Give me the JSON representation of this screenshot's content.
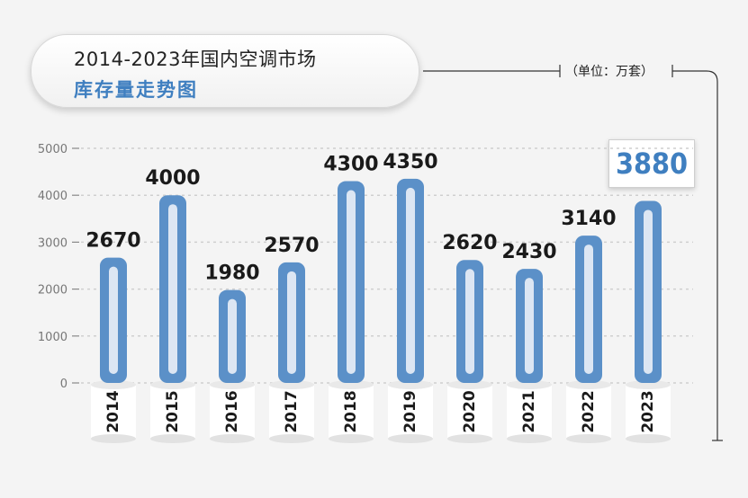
{
  "header": {
    "title_line1": "2014-2023年国内空调市场",
    "title_line2": "库存量走势图",
    "unit": "（单位：万套）"
  },
  "highlight": {
    "value": "3880"
  },
  "colors": {
    "bar_outer": "#5b90c8",
    "bar_inner": "#dce6f3",
    "accent_text": "#3f7fc0",
    "grid": "#cfcfcf"
  },
  "chart_data": {
    "type": "bar",
    "categories": [
      "2014",
      "2015",
      "2016",
      "2017",
      "2018",
      "2019",
      "2020",
      "2021",
      "2022",
      "2023"
    ],
    "values": [
      2670,
      4000,
      1980,
      2570,
      4300,
      4350,
      2620,
      2430,
      3140,
      3880
    ],
    "data_labels": [
      "2670",
      "4000",
      "1980",
      "2570",
      "4300",
      "4350",
      "2620",
      "2430",
      "3140",
      ""
    ],
    "y_ticks": [
      0,
      1000,
      2000,
      3000,
      4000,
      5000
    ],
    "ylim": [
      0,
      5000
    ],
    "grid": true,
    "legend": "none"
  }
}
